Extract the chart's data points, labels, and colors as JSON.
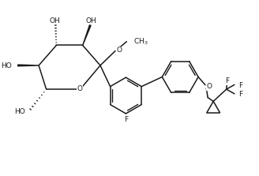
{
  "bg_color": "#ffffff",
  "line_color": "#1a1a1a",
  "line_width": 1.1,
  "font_size": 6.5,
  "fig_width": 3.28,
  "fig_height": 2.23,
  "dpi": 100,
  "xlim": [
    0,
    10
  ],
  "ylim": [
    0,
    6.8
  ]
}
